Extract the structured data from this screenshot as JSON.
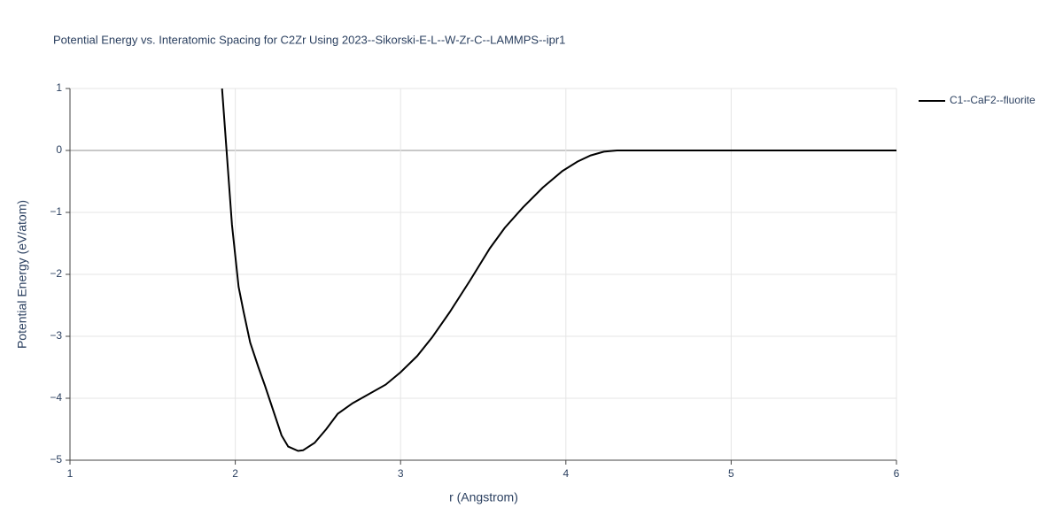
{
  "chart_data": {
    "type": "line",
    "title": "Potential Energy vs. Interatomic Spacing for C2Zr Using 2023--Sikorski-E-L--W-Zr-C--LAMMPS--ipr1",
    "x_label": "r (Angstrom)",
    "y_label": "Potential Energy (eV/atom)",
    "xlim": [
      1,
      6
    ],
    "ylim": [
      -5,
      1
    ],
    "xticks": [
      1,
      2,
      3,
      4,
      5,
      6
    ],
    "yticks": [
      {
        "value": -5,
        "label": "−5"
      },
      {
        "value": -4,
        "label": "−4"
      },
      {
        "value": -3,
        "label": "−3"
      },
      {
        "value": -2,
        "label": "−2"
      },
      {
        "value": -1,
        "label": "−1"
      },
      0,
      1
    ],
    "grid": true,
    "legend": "top-right",
    "series": [
      {
        "name": "C1--CaF2--fluorite",
        "color": "#000000",
        "x": [
          1.92,
          1.98,
          2.02,
          2.05,
          2.09,
          2.14,
          2.18,
          2.23,
          2.28,
          2.32,
          2.38,
          2.41,
          2.48,
          2.55,
          2.62,
          2.71,
          2.91,
          3.0,
          3.1,
          3.19,
          3.3,
          3.42,
          3.54,
          3.63,
          3.74,
          3.86,
          3.98,
          4.07,
          4.15,
          4.23,
          4.31,
          6.0
        ],
        "values": [
          1.0,
          -1.2,
          -2.2,
          -2.6,
          -3.1,
          -3.5,
          -3.8,
          -4.2,
          -4.6,
          -4.78,
          -4.85,
          -4.84,
          -4.72,
          -4.5,
          -4.25,
          -4.08,
          -3.78,
          -3.58,
          -3.32,
          -3.02,
          -2.6,
          -2.1,
          -1.58,
          -1.25,
          -0.92,
          -0.6,
          -0.33,
          -0.18,
          -0.08,
          -0.02,
          0,
          0
        ]
      }
    ]
  }
}
